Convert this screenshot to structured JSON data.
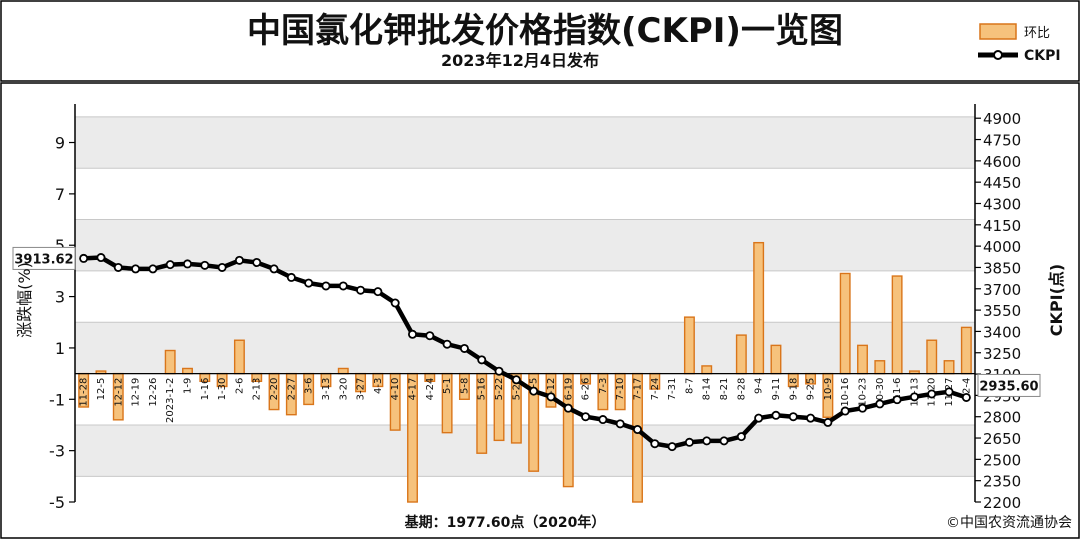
{
  "header": {
    "title": "中国氯化钾批发价格指数(CKPI)一览图",
    "subtitle": "2023年12月4日发布"
  },
  "legend": {
    "bar_label": "环比",
    "line_label": "CKPI"
  },
  "footer": {
    "base_note": "基期：1977.60点（2020年）",
    "copyright": "©中国农资流通协会"
  },
  "colors": {
    "bar_fill": "#F6C27C",
    "bar_edge": "#D9751A",
    "line": "#000000",
    "plot_bg": "#EBEBEB"
  },
  "chart_data": {
    "type": "bar+line",
    "categories": [
      "11-28",
      "12-5",
      "12-12",
      "12-19",
      "12-26",
      "2023-1-2",
      "1-9",
      "1-16",
      "1-30",
      "2-6",
      "2-13",
      "2-20",
      "2-27",
      "3-6",
      "3-13",
      "3-20",
      "3-27",
      "4-3",
      "4-10",
      "4-17",
      "4-24",
      "5-1",
      "5-8",
      "5-16",
      "5-22",
      "5-29",
      "6-5",
      "6-12",
      "6-19",
      "6-26",
      "7-3",
      "7-10",
      "7-17",
      "7-24",
      "7-31",
      "8-7",
      "8-14",
      "8-21",
      "8-28",
      "9-4",
      "9-11",
      "9-18",
      "9-25",
      "10-9",
      "10-16",
      "10-23",
      "10-30",
      "11-6",
      "11-13",
      "11-20",
      "11-27",
      "12-4"
    ],
    "series": [
      {
        "name": "环比",
        "axis": "left",
        "values": [
          -1.3,
          0.1,
          -1.8,
          0,
          0,
          0.9,
          0.2,
          -0.3,
          -0.5,
          1.3,
          -0.3,
          -1.4,
          -1.6,
          -1.2,
          -0.5,
          0.2,
          -0.7,
          -0.5,
          -2.2,
          -5.0,
          -0.3,
          -2.3,
          -1.0,
          -3.1,
          -2.6,
          -2.7,
          -3.8,
          -1.3,
          -4.4,
          -0.4,
          -1.4,
          -1.4,
          -5.0,
          -0.6,
          0,
          2.2,
          0.3,
          0,
          1.5,
          5.1,
          1.1,
          -0.5,
          -0.4,
          -1.7,
          3.9,
          1.1,
          0.5,
          3.8,
          0.1,
          1.3,
          0.5,
          1.8
        ]
      },
      {
        "name": "CKPI",
        "axis": "right",
        "values": [
          3913.62,
          3920,
          3850,
          3840,
          3840,
          3870,
          3875,
          3865,
          3850,
          3900,
          3885,
          3840,
          3780,
          3740,
          3720,
          3720,
          3690,
          3680,
          3600,
          3380,
          3370,
          3310,
          3280,
          3200,
          3120,
          3060,
          2980,
          2940,
          2860,
          2800,
          2780,
          2750,
          2710,
          2610,
          2590,
          2620,
          2630,
          2630,
          2660,
          2790,
          2810,
          2800,
          2790,
          2760,
          2840,
          2860,
          2890,
          2920,
          2940,
          2960,
          2975,
          2935.6
        ]
      }
    ],
    "left_axis": {
      "label": "涨跌幅(%)",
      "ylim": [
        -5,
        10.5
      ],
      "ticks": [
        9,
        7,
        5,
        3,
        1,
        -1,
        -3,
        -5
      ]
    },
    "right_axis": {
      "label": "CKPI(点)",
      "ylim": [
        2200,
        5000
      ],
      "ticks": [
        4900,
        4750,
        4600,
        4450,
        4300,
        4150,
        4000,
        3850,
        3700,
        3550,
        3400,
        3250,
        3100,
        2950,
        2800,
        2650,
        2500,
        2350,
        2200
      ]
    },
    "callouts": {
      "start": "3913.62",
      "end": "2935.60"
    },
    "grid": "horizontal",
    "legend_position": "top-right"
  }
}
